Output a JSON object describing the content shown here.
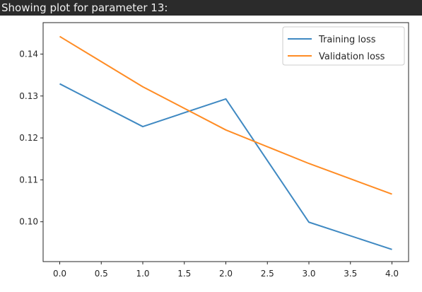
{
  "header": {
    "text": "Showing plot for parameter 13:"
  },
  "colors": {
    "background": "#2b2b2b",
    "header_text": "#f0f0f0",
    "training": "#3f89c2",
    "validation": "#ff8c24"
  },
  "chart_data": {
    "type": "line",
    "title": "",
    "xlabel": "",
    "ylabel": "",
    "xlim": [
      -0.2,
      4.2
    ],
    "ylim": [
      0.0905,
      0.1475
    ],
    "x_ticks": [
      0.0,
      0.5,
      1.0,
      1.5,
      2.0,
      2.5,
      3.0,
      3.5,
      4.0
    ],
    "x_tick_labels": [
      "0.0",
      "0.5",
      "1.0",
      "1.5",
      "2.0",
      "2.5",
      "3.0",
      "3.5",
      "4.0"
    ],
    "y_ticks": [
      0.1,
      0.11,
      0.12,
      0.13,
      0.14
    ],
    "y_tick_labels": [
      "0.10",
      "0.11",
      "0.12",
      "0.13",
      "0.14"
    ],
    "grid": false,
    "legend_position": "top-right",
    "x": [
      0,
      1,
      2,
      3,
      4
    ],
    "series": [
      {
        "name": "Training loss",
        "color": "#3f89c2",
        "values": [
          0.1329,
          0.1227,
          0.1293,
          0.0999,
          0.0934
        ]
      },
      {
        "name": "Validation loss",
        "color": "#ff8c24",
        "values": [
          0.1442,
          0.1322,
          0.1219,
          0.1139,
          0.1066
        ]
      }
    ]
  }
}
